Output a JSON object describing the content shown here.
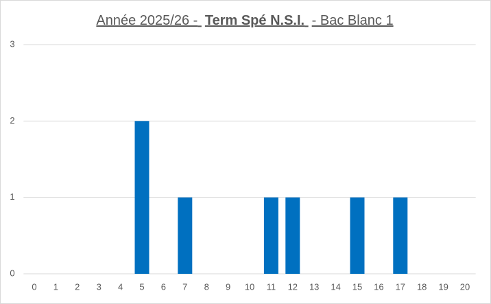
{
  "chart_data": {
    "type": "bar",
    "title": [
      "Année 2025/26 -",
      "Term Spé N.S.I.",
      "- Bac Blanc 1"
    ],
    "categories": [
      0,
      1,
      2,
      3,
      4,
      5,
      6,
      7,
      8,
      9,
      10,
      11,
      12,
      13,
      14,
      15,
      16,
      17,
      18,
      19,
      20
    ],
    "values": [
      0,
      0,
      0,
      0,
      0,
      2,
      0,
      1,
      0,
      0,
      0,
      1,
      1,
      0,
      0,
      1,
      0,
      1,
      0,
      0,
      0
    ],
    "color": "#0070c0",
    "ylim": [
      0,
      3
    ],
    "yticks": [
      0,
      1,
      2,
      3
    ],
    "grid": true
  }
}
